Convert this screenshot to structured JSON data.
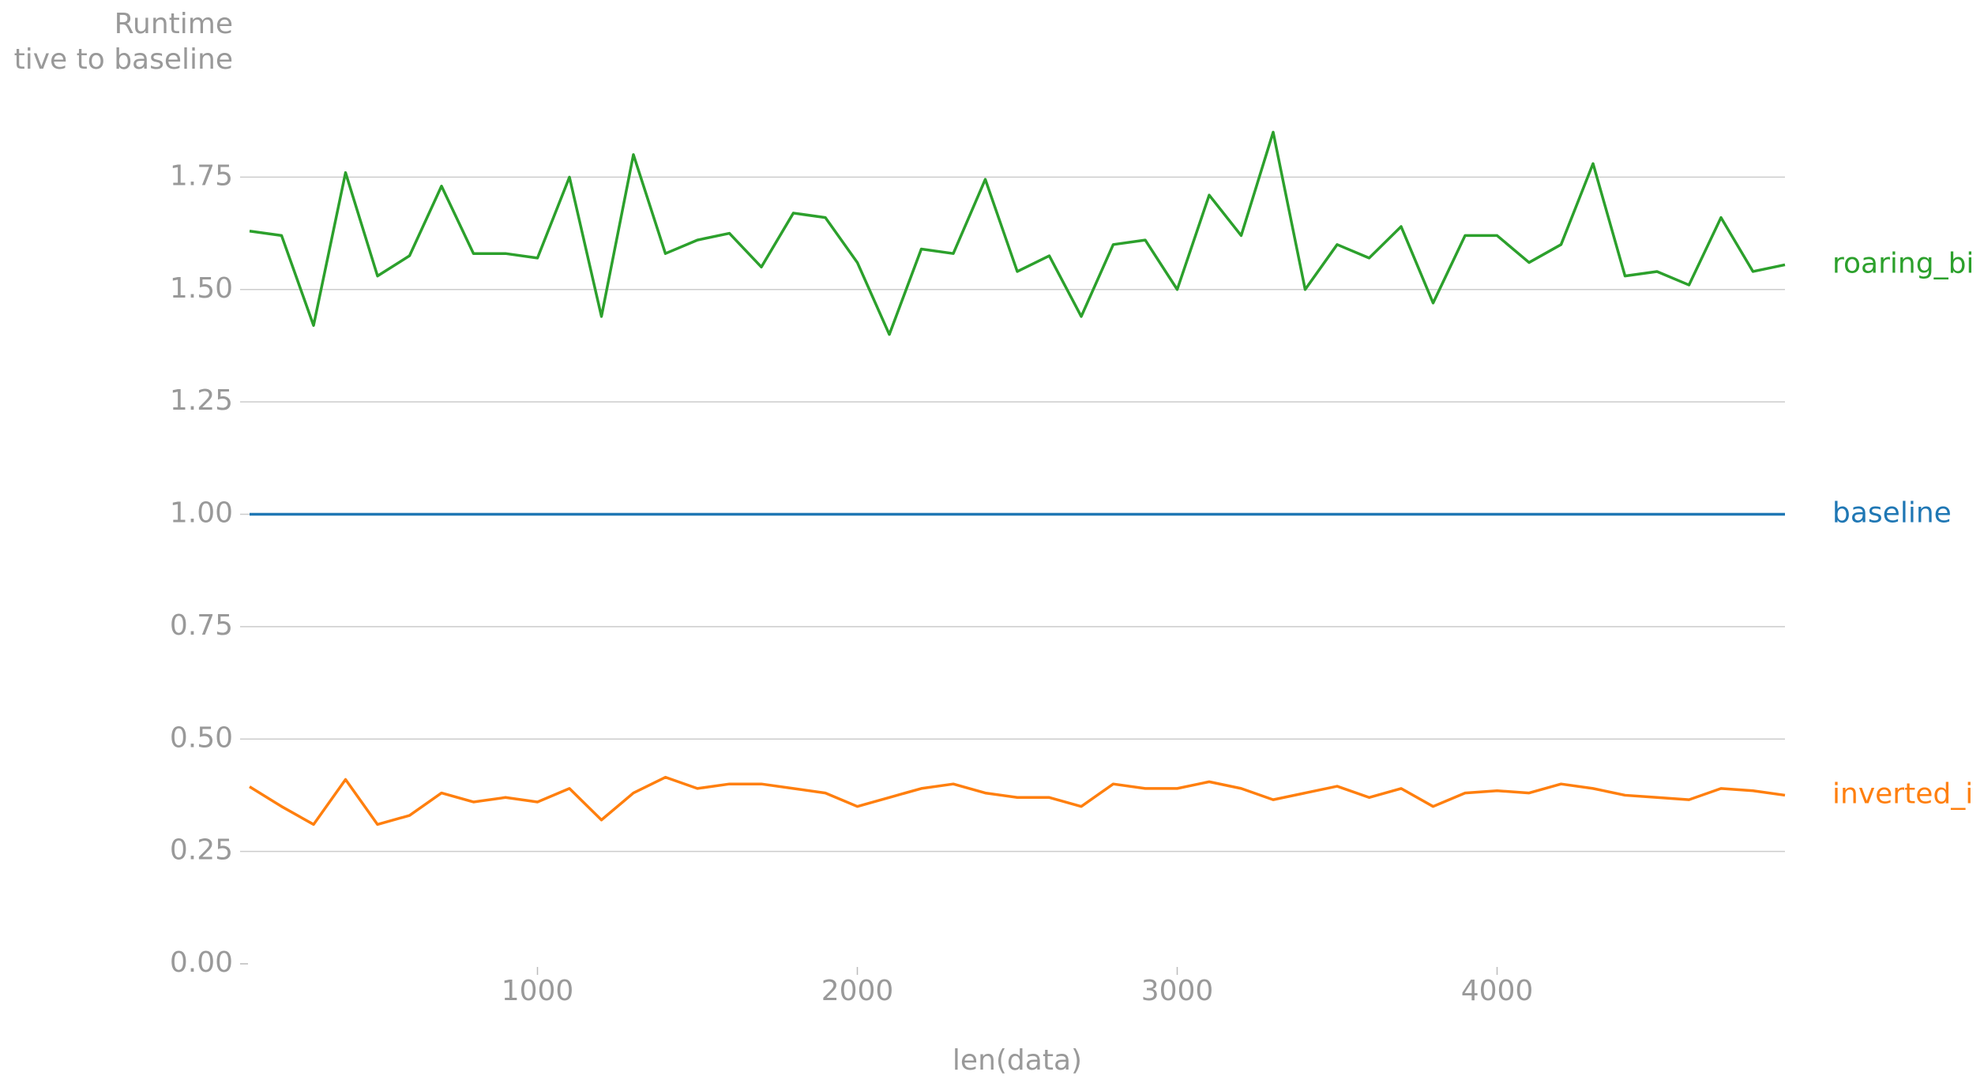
{
  "chart_data": {
    "type": "line",
    "y_label": [
      "Runtime",
      "tive to baseline"
    ],
    "x_label": "len(data)",
    "x": [
      100,
      200,
      300,
      400,
      500,
      600,
      700,
      800,
      900,
      1000,
      1100,
      1200,
      1300,
      1400,
      1500,
      1600,
      1700,
      1800,
      1900,
      2000,
      2100,
      2200,
      2300,
      2400,
      2500,
      2600,
      2700,
      2800,
      2900,
      3000,
      3100,
      3200,
      3300,
      3400,
      3500,
      3600,
      3700,
      3800,
      3900,
      4000,
      4100,
      4200,
      4300,
      4400,
      4500,
      4600,
      4700,
      4800,
      4900
    ],
    "series": [
      {
        "name": "roaring_bi",
        "color": "#2ca02c",
        "values": [
          1.63,
          1.62,
          1.42,
          1.76,
          1.53,
          1.575,
          1.73,
          1.58,
          1.58,
          1.57,
          1.75,
          1.44,
          1.8,
          1.58,
          1.61,
          1.625,
          1.55,
          1.67,
          1.66,
          1.56,
          1.4,
          1.59,
          1.58,
          1.745,
          1.54,
          1.575,
          1.44,
          1.6,
          1.61,
          1.5,
          1.71,
          1.62,
          1.85,
          1.5,
          1.6,
          1.57,
          1.64,
          1.47,
          1.62,
          1.62,
          1.56,
          1.6,
          1.78,
          1.53,
          1.54,
          1.51,
          1.66,
          1.54,
          1.555
        ]
      },
      {
        "name": "baseline",
        "color": "#1f77b4",
        "values": [
          1,
          1,
          1,
          1,
          1,
          1,
          1,
          1,
          1,
          1,
          1,
          1,
          1,
          1,
          1,
          1,
          1,
          1,
          1,
          1,
          1,
          1,
          1,
          1,
          1,
          1,
          1,
          1,
          1,
          1,
          1,
          1,
          1,
          1,
          1,
          1,
          1,
          1,
          1,
          1,
          1,
          1,
          1,
          1,
          1,
          1,
          1,
          1,
          1
        ]
      },
      {
        "name": "inverted_i",
        "color": "#ff7f0e",
        "values": [
          0.394,
          0.35,
          0.31,
          0.41,
          0.31,
          0.33,
          0.38,
          0.36,
          0.37,
          0.36,
          0.39,
          0.32,
          0.38,
          0.415,
          0.39,
          0.4,
          0.4,
          0.39,
          0.38,
          0.35,
          0.37,
          0.39,
          0.4,
          0.38,
          0.37,
          0.37,
          0.35,
          0.4,
          0.39,
          0.39,
          0.405,
          0.39,
          0.365,
          0.38,
          0.395,
          0.37,
          0.39,
          0.35,
          0.38,
          0.385,
          0.38,
          0.4,
          0.39,
          0.375,
          0.37,
          0.365,
          0.39,
          0.385,
          0.375
        ]
      }
    ],
    "xlim": [
      100,
      4900
    ],
    "xticks": [
      1000,
      2000,
      3000,
      4000
    ],
    "ylim": [
      0,
      2
    ],
    "yticks": [
      {
        "value": 0,
        "label": "0.00"
      },
      {
        "value": 0.25,
        "label": "0.25"
      },
      {
        "value": 0.5,
        "label": "0.50"
      },
      {
        "value": 0.75,
        "label": "0.75"
      },
      {
        "value": 1,
        "label": "1.00"
      },
      {
        "value": 1.25,
        "label": "1.25"
      },
      {
        "value": 1.5,
        "label": "1.50"
      },
      {
        "value": 1.75,
        "label": "1.75"
      }
    ],
    "grid": true
  }
}
